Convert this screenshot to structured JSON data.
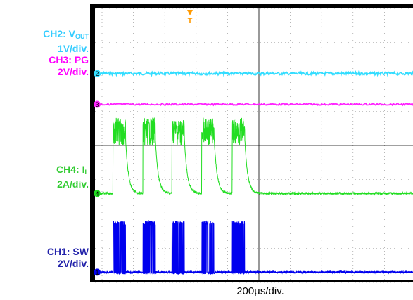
{
  "labels": {
    "ch2": {
      "prefix": "CH2: V",
      "sub": "OUT",
      "scale": "1V/div.",
      "color": "#33ccff"
    },
    "ch3": {
      "prefix": "CH3: PG",
      "scale": "2V/div.",
      "color": "#ff00ff"
    },
    "ch4": {
      "prefix": "CH4: I",
      "sub": "L",
      "scale": "2A/div.",
      "color": "#33cc33"
    },
    "ch1": {
      "prefix": "CH1: SW",
      "scale": "2V/div.",
      "color": "#2222aa"
    }
  },
  "time_div_label": "200µs/div.",
  "chart_data": {
    "type": "line",
    "title": "",
    "xlabel": "200µs/div.",
    "grid": true,
    "x_divisions": 10,
    "y_divisions": 8,
    "series": [
      {
        "name": "CH2: VOUT",
        "marker": "2",
        "color": "#33ddff",
        "level_div": 6.1,
        "behavior": "flat with small ripple"
      },
      {
        "name": "CH3: PG",
        "marker": "3",
        "color": "#ff22ff",
        "level_div": 5.2,
        "behavior": "flat high"
      },
      {
        "name": "CH4: IL",
        "marker": "4",
        "color": "#22dd22",
        "level_div": 2.6,
        "burst_level_div": 4.4,
        "behavior": "burst pulses with decaying tail"
      },
      {
        "name": "CH1: SW",
        "marker": "1",
        "color": "#0000ee",
        "level_div": 0.3,
        "burst_level_div": 1.8,
        "behavior": "switching bursts"
      }
    ],
    "burst_start_us": [
      70,
      260,
      445,
      635,
      830
    ],
    "burst_width_us": 80,
    "trigger_marker": "T"
  }
}
